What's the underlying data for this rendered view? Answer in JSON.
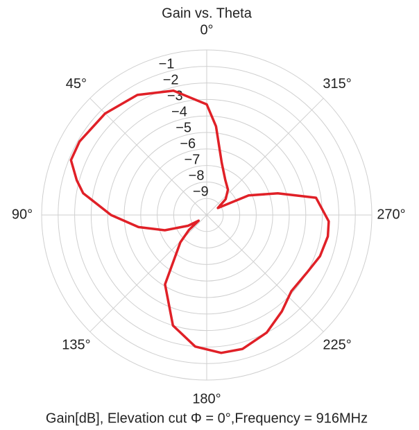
{
  "chart_data": {
    "type": "polar",
    "title": "Gain vs. Theta",
    "xlabel": "Gain[dB], Elevation cut Φ = 0°,Frequency = 916MHz",
    "theta_direction": "counterclockwise",
    "theta_zero": "top",
    "x": [
      0,
      15,
      30,
      45,
      60,
      68,
      75,
      80,
      90,
      100,
      110,
      120,
      125,
      130,
      136,
      149,
      163,
      175,
      186,
      195,
      207,
      218,
      228,
      240,
      250,
      260,
      267,
      279,
      287,
      295,
      302,
      310,
      320,
      332,
      344,
      354
    ],
    "series": [
      {
        "name": "Gain",
        "color": "#e02027",
        "values": [
          -3.3,
          -2.2,
          -1.6,
          -1.3,
          -1.1,
          -1.13,
          -1.85,
          -2.4,
          -4.2,
          -5.8,
          -7.3,
          -8.7,
          -9.4,
          -8.6,
          -7.7,
          -5.1,
          -3.0,
          -2.0,
          -1.6,
          -1.6,
          -2.0,
          -2.6,
          -3.1,
          -3.0,
          -2.7,
          -2.55,
          -2.6,
          -3.3,
          -5.5,
          -7.2,
          -9.2,
          -8.5,
          -8.0,
          -7.6,
          -6.7,
          -4.6
        ]
      }
    ],
    "ylim": [
      -10,
      0
    ],
    "yticks": [
      {
        "value": -9,
        "label": "−9"
      },
      {
        "value": -8,
        "label": "−8"
      },
      {
        "value": -7,
        "label": "−7"
      },
      {
        "value": -6,
        "label": "−6"
      },
      {
        "value": -5,
        "label": "−5"
      },
      {
        "value": -4,
        "label": "−4"
      },
      {
        "value": -3,
        "label": "−3"
      },
      {
        "value": -2,
        "label": "−2"
      },
      {
        "value": -1,
        "label": "−1"
      }
    ],
    "xticks": [
      {
        "value": 0,
        "label": "0°"
      },
      {
        "value": 45,
        "label": "45°"
      },
      {
        "value": 90,
        "label": "90°"
      },
      {
        "value": 135,
        "label": "135°"
      },
      {
        "value": 180,
        "label": "180°"
      },
      {
        "value": 225,
        "label": "225°"
      },
      {
        "value": 270,
        "label": "270°"
      },
      {
        "value": 315,
        "label": "315°"
      }
    ],
    "grid": true
  }
}
